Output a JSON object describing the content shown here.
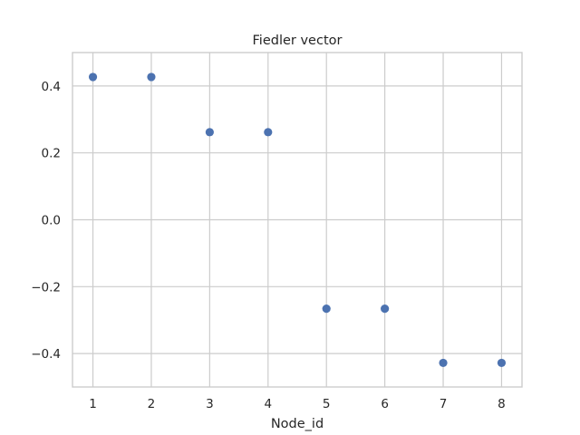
{
  "chart_data": {
    "type": "scatter",
    "title": "Fiedler vector",
    "xlabel": "Node_id",
    "ylabel": "",
    "x": [
      1,
      2,
      3,
      4,
      5,
      6,
      7,
      8
    ],
    "y": [
      0.427,
      0.427,
      0.262,
      0.262,
      -0.266,
      -0.266,
      -0.428,
      -0.428
    ],
    "xticks": [
      1,
      2,
      3,
      4,
      5,
      6,
      7,
      8
    ],
    "xtick_labels": [
      "1",
      "2",
      "3",
      "4",
      "5",
      "6",
      "7",
      "8"
    ],
    "yticks": [
      -0.4,
      -0.2,
      0.0,
      0.2,
      0.4
    ],
    "ytick_labels": [
      "−0.4",
      "−0.2",
      "0.0",
      "0.2",
      "0.4"
    ],
    "xlim": [
      0.65,
      8.35
    ],
    "ylim": [
      -0.5,
      0.5
    ],
    "grid": true,
    "legend": "none",
    "marker_color": "#4c72b0",
    "grid_color": "#cccccc",
    "text_color": "#262626"
  }
}
